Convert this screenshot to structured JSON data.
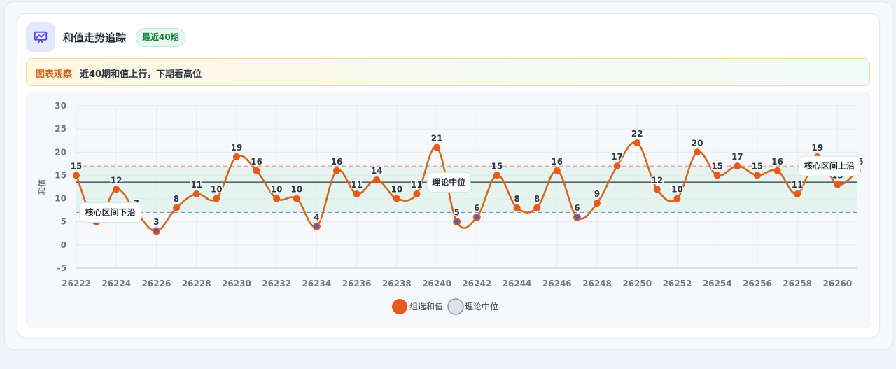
{
  "header": {
    "title": "和值走势追踪",
    "badge": "最近40期",
    "icon": "presentation-chart-icon"
  },
  "banner": {
    "tag": "图表观察",
    "text": "近40期和值上行，下期看高位"
  },
  "colors": {
    "series": "#d2691e",
    "point_fill": "#e8591a",
    "low_point": "#4a5fc1",
    "median_line": "#546272",
    "upper_line": "#e88c8c",
    "lower_line": "#6f9bc9",
    "band": "#dff3ea",
    "accent_icon": "#4f46e5"
  },
  "chart_data": {
    "type": "line",
    "ylabel": "和值",
    "xlabel": "",
    "ylim": [
      -5,
      30
    ],
    "yticks": [
      -5,
      0,
      5,
      10,
      15,
      20,
      25,
      30
    ],
    "xticks": [
      "26222",
      "26224",
      "26226",
      "26228",
      "26230",
      "26232",
      "26234",
      "26236",
      "26238",
      "26240",
      "26242",
      "26244",
      "26246",
      "26248",
      "26250",
      "26252",
      "26254",
      "26256",
      "26258",
      "26260"
    ],
    "x": [
      26222,
      26223,
      26224,
      26225,
      26226,
      26227,
      26228,
      26229,
      26230,
      26231,
      26232,
      26233,
      26234,
      26235,
      26236,
      26237,
      26238,
      26239,
      26240,
      26241,
      26242,
      26243,
      26244,
      26245,
      26246,
      26247,
      26248,
      26249,
      26250,
      26251,
      26252,
      26253,
      26254,
      26255,
      26256,
      26257,
      26258,
      26259,
      26260,
      26261
    ],
    "series": [
      {
        "name": "组选和值",
        "values": [
          15,
          5,
          12,
          7,
          3,
          8,
          11,
          10,
          19,
          16,
          10,
          10,
          4,
          16,
          11,
          14,
          10,
          11,
          21,
          5,
          6,
          15,
          8,
          8,
          16,
          6,
          9,
          17,
          22,
          12,
          10,
          20,
          15,
          17,
          15,
          16,
          11,
          19,
          13,
          16
        ]
      }
    ],
    "reference_lines": [
      {
        "name": "理论中位",
        "value": 13.5,
        "style": "solid"
      },
      {
        "name": "核心区间上沿",
        "value": 17,
        "style": "dashed"
      },
      {
        "name": "核心区间下沿",
        "value": 7,
        "style": "dashed"
      }
    ],
    "legend": [
      "组选和值",
      "理论中位"
    ],
    "legend_position": "bottom",
    "grid": true
  }
}
